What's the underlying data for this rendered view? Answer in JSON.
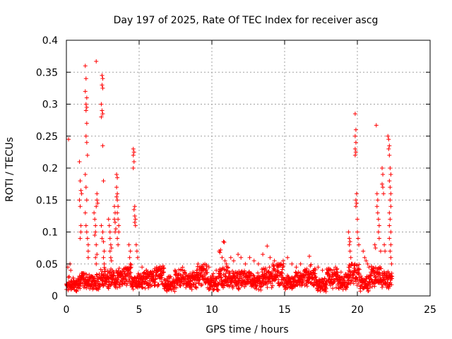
{
  "chart_data": {
    "type": "scatter",
    "title": "Day 197 of 2025, Rate Of TEC Index for receiver ascg",
    "xlabel": "GPS time / hours",
    "ylabel": "ROTI / TECUs",
    "xlim": [
      0,
      25
    ],
    "ylim": [
      0,
      0.4
    ],
    "xticks": [
      "0",
      "5",
      "10",
      "15",
      "20",
      "25"
    ],
    "yticks": [
      "0",
      "0.05",
      "0.1",
      "0.15",
      "0.2",
      "0.25",
      "0.3",
      "0.35",
      "0.4"
    ],
    "xtick_values": [
      0,
      5,
      10,
      15,
      20,
      25
    ],
    "ytick_values": [
      0,
      0.05,
      0.1,
      0.15,
      0.2,
      0.25,
      0.3,
      0.35,
      0.4
    ],
    "grid": true,
    "marker": "+",
    "color": "#ff0000",
    "series": [
      {
        "points": [
          [
            0.1,
            0.045
          ],
          [
            0.15,
            0.245
          ],
          [
            0.2,
            0.03
          ],
          [
            0.25,
            0.05
          ],
          [
            0.3,
            0.04
          ],
          [
            0.9,
            0.21
          ],
          [
            0.95,
            0.18
          ],
          [
            0.9,
            0.15
          ],
          [
            0.95,
            0.14
          ],
          [
            1.0,
            0.11
          ],
          [
            1.0,
            0.1
          ],
          [
            0.95,
            0.09
          ],
          [
            1.05,
            0.16
          ],
          [
            1.0,
            0.165
          ],
          [
            1.3,
            0.36
          ],
          [
            1.35,
            0.34
          ],
          [
            1.3,
            0.32
          ],
          [
            1.4,
            0.31
          ],
          [
            1.35,
            0.3
          ],
          [
            1.4,
            0.295
          ],
          [
            1.35,
            0.29
          ],
          [
            1.4,
            0.27
          ],
          [
            1.35,
            0.25
          ],
          [
            1.4,
            0.24
          ],
          [
            1.45,
            0.22
          ],
          [
            1.3,
            0.19
          ],
          [
            1.35,
            0.17
          ],
          [
            1.4,
            0.15
          ],
          [
            1.3,
            0.13
          ],
          [
            1.35,
            0.11
          ],
          [
            1.4,
            0.1
          ],
          [
            1.45,
            0.09
          ],
          [
            1.5,
            0.08
          ],
          [
            1.5,
            0.07
          ],
          [
            1.5,
            0.06
          ],
          [
            1.9,
            0.13
          ],
          [
            1.95,
            0.12
          ],
          [
            2.0,
            0.11
          ],
          [
            2.0,
            0.1
          ],
          [
            1.95,
            0.095
          ],
          [
            2.05,
            0.08
          ],
          [
            2.1,
            0.065
          ],
          [
            2.0,
            0.06
          ],
          [
            2.05,
            0.05
          ],
          [
            2.05,
            0.367
          ],
          [
            2.1,
            0.16
          ],
          [
            2.1,
            0.15
          ],
          [
            2.15,
            0.145
          ],
          [
            2.05,
            0.14
          ],
          [
            2.45,
            0.345
          ],
          [
            2.5,
            0.34
          ],
          [
            2.45,
            0.33
          ],
          [
            2.5,
            0.325
          ],
          [
            2.4,
            0.3
          ],
          [
            2.45,
            0.29
          ],
          [
            2.5,
            0.285
          ],
          [
            2.4,
            0.28
          ],
          [
            2.5,
            0.235
          ],
          [
            2.55,
            0.18
          ],
          [
            2.4,
            0.11
          ],
          [
            2.5,
            0.1
          ],
          [
            2.45,
            0.09
          ],
          [
            2.55,
            0.085
          ],
          [
            2.6,
            0.07
          ],
          [
            2.55,
            0.06
          ],
          [
            2.6,
            0.05
          ],
          [
            2.9,
            0.12
          ],
          [
            2.95,
            0.11
          ],
          [
            3.0,
            0.1
          ],
          [
            3.0,
            0.09
          ],
          [
            3.05,
            0.08
          ],
          [
            3.1,
            0.075
          ],
          [
            3.0,
            0.07
          ],
          [
            3.05,
            0.06
          ],
          [
            3.1,
            0.055
          ],
          [
            3.3,
            0.14
          ],
          [
            3.35,
            0.13
          ],
          [
            3.3,
            0.12
          ],
          [
            3.35,
            0.115
          ],
          [
            3.4,
            0.105
          ],
          [
            3.35,
            0.1
          ],
          [
            3.45,
            0.19
          ],
          [
            3.5,
            0.185
          ],
          [
            3.45,
            0.17
          ],
          [
            3.5,
            0.16
          ],
          [
            3.45,
            0.155
          ],
          [
            3.5,
            0.15
          ],
          [
            3.55,
            0.14
          ],
          [
            3.5,
            0.13
          ],
          [
            3.55,
            0.12
          ],
          [
            3.6,
            0.11
          ],
          [
            3.6,
            0.1
          ],
          [
            3.5,
            0.09
          ],
          [
            3.55,
            0.08
          ],
          [
            4.3,
            0.08
          ],
          [
            4.4,
            0.07
          ],
          [
            4.35,
            0.06
          ],
          [
            4.4,
            0.05
          ],
          [
            4.45,
            0.045
          ],
          [
            4.6,
            0.23
          ],
          [
            4.65,
            0.225
          ],
          [
            4.6,
            0.22
          ],
          [
            4.65,
            0.21
          ],
          [
            4.6,
            0.2
          ],
          [
            4.7,
            0.14
          ],
          [
            4.65,
            0.135
          ],
          [
            4.7,
            0.125
          ],
          [
            4.75,
            0.12
          ],
          [
            4.7,
            0.115
          ],
          [
            4.75,
            0.11
          ],
          [
            4.8,
            0.08
          ],
          [
            4.85,
            0.07
          ],
          [
            4.9,
            0.06
          ],
          [
            10.5,
            0.07
          ],
          [
            10.55,
            0.068
          ],
          [
            10.6,
            0.072
          ],
          [
            10.8,
            0.085
          ],
          [
            10.85,
            0.084
          ],
          [
            10.7,
            0.06
          ],
          [
            10.9,
            0.055
          ],
          [
            11.0,
            0.05
          ],
          [
            11.1,
            0.045
          ],
          [
            11.3,
            0.06
          ],
          [
            11.5,
            0.055
          ],
          [
            11.8,
            0.065
          ],
          [
            12.0,
            0.06
          ],
          [
            12.3,
            0.05
          ],
          [
            12.6,
            0.06
          ],
          [
            12.9,
            0.055
          ],
          [
            13.2,
            0.05
          ],
          [
            13.5,
            0.065
          ],
          [
            13.8,
            0.078
          ],
          [
            14.0,
            0.06
          ],
          [
            14.3,
            0.055
          ],
          [
            14.6,
            0.05
          ],
          [
            14.9,
            0.055
          ],
          [
            15.2,
            0.06
          ],
          [
            15.5,
            0.05
          ],
          [
            15.8,
            0.045
          ],
          [
            16.1,
            0.05
          ],
          [
            16.4,
            0.04
          ],
          [
            16.7,
            0.062
          ],
          [
            17.0,
            0.04
          ],
          [
            17.3,
            0.045
          ],
          [
            17.6,
            0.04
          ],
          [
            17.9,
            0.042
          ],
          [
            18.2,
            0.04
          ],
          [
            18.5,
            0.045
          ],
          [
            9.6,
            0.04
          ],
          [
            9.8,
            0.045
          ],
          [
            10.1,
            0.035
          ],
          [
            10.3,
            0.04
          ],
          [
            8.0,
            0.04
          ],
          [
            8.5,
            0.035
          ],
          [
            9.0,
            0.03
          ],
          [
            7.5,
            0.033
          ],
          [
            7.0,
            0.03
          ],
          [
            6.5,
            0.028
          ],
          [
            6.0,
            0.03
          ],
          [
            5.5,
            0.04
          ],
          [
            5.2,
            0.045
          ],
          [
            19.4,
            0.1
          ],
          [
            19.45,
            0.09
          ],
          [
            19.5,
            0.085
          ],
          [
            19.45,
            0.08
          ],
          [
            19.5,
            0.07
          ],
          [
            19.55,
            0.06
          ],
          [
            19.6,
            0.05
          ],
          [
            19.4,
            0.045
          ],
          [
            19.85,
            0.285
          ],
          [
            19.9,
            0.26
          ],
          [
            19.85,
            0.25
          ],
          [
            19.9,
            0.24
          ],
          [
            19.85,
            0.23
          ],
          [
            19.9,
            0.225
          ],
          [
            19.85,
            0.22
          ],
          [
            19.95,
            0.16
          ],
          [
            19.9,
            0.15
          ],
          [
            19.95,
            0.145
          ],
          [
            19.9,
            0.14
          ],
          [
            20.0,
            0.12
          ],
          [
            20.0,
            0.1
          ],
          [
            20.05,
            0.09
          ],
          [
            20.1,
            0.08
          ],
          [
            20.4,
            0.07
          ],
          [
            20.5,
            0.06
          ],
          [
            20.6,
            0.055
          ],
          [
            20.7,
            0.05
          ],
          [
            20.8,
            0.045
          ],
          [
            21.3,
            0.267
          ],
          [
            21.35,
            0.16
          ],
          [
            21.4,
            0.15
          ],
          [
            21.35,
            0.14
          ],
          [
            21.4,
            0.13
          ],
          [
            21.45,
            0.12
          ],
          [
            21.5,
            0.11
          ],
          [
            21.45,
            0.1
          ],
          [
            21.5,
            0.09
          ],
          [
            21.2,
            0.08
          ],
          [
            21.25,
            0.075
          ],
          [
            21.6,
            0.07
          ],
          [
            21.7,
            0.2
          ],
          [
            21.75,
            0.19
          ],
          [
            21.7,
            0.175
          ],
          [
            21.75,
            0.17
          ],
          [
            21.8,
            0.16
          ],
          [
            21.85,
            0.08
          ],
          [
            21.9,
            0.07
          ],
          [
            22.1,
            0.25
          ],
          [
            22.15,
            0.245
          ],
          [
            22.2,
            0.235
          ],
          [
            22.15,
            0.23
          ],
          [
            22.2,
            0.22
          ],
          [
            22.25,
            0.2
          ],
          [
            22.3,
            0.19
          ],
          [
            22.2,
            0.18
          ],
          [
            22.25,
            0.17
          ],
          [
            22.3,
            0.16
          ],
          [
            22.25,
            0.15
          ],
          [
            22.3,
            0.14
          ],
          [
            22.2,
            0.13
          ],
          [
            22.25,
            0.12
          ],
          [
            22.2,
            0.11
          ],
          [
            22.3,
            0.1
          ],
          [
            22.2,
            0.09
          ],
          [
            22.3,
            0.08
          ],
          [
            22.25,
            0.07
          ],
          [
            22.3,
            0.06
          ],
          [
            22.35,
            0.05
          ]
        ],
        "band": {
          "x_start": 0.0,
          "x_end": 22.4,
          "base_values": [
            0.012,
            0.018,
            0.015,
            0.022,
            0.02,
            0.025,
            0.016,
            0.019,
            0.024,
            0.013,
            0.021,
            0.017,
            0.026,
            0.014,
            0.023,
            0.018,
            0.02,
            0.016,
            0.022,
            0.028,
            0.015,
            0.019,
            0.024,
            0.012,
            0.021,
            0.017,
            0.027,
            0.014,
            0.023,
            0.018
          ]
        }
      }
    ]
  }
}
